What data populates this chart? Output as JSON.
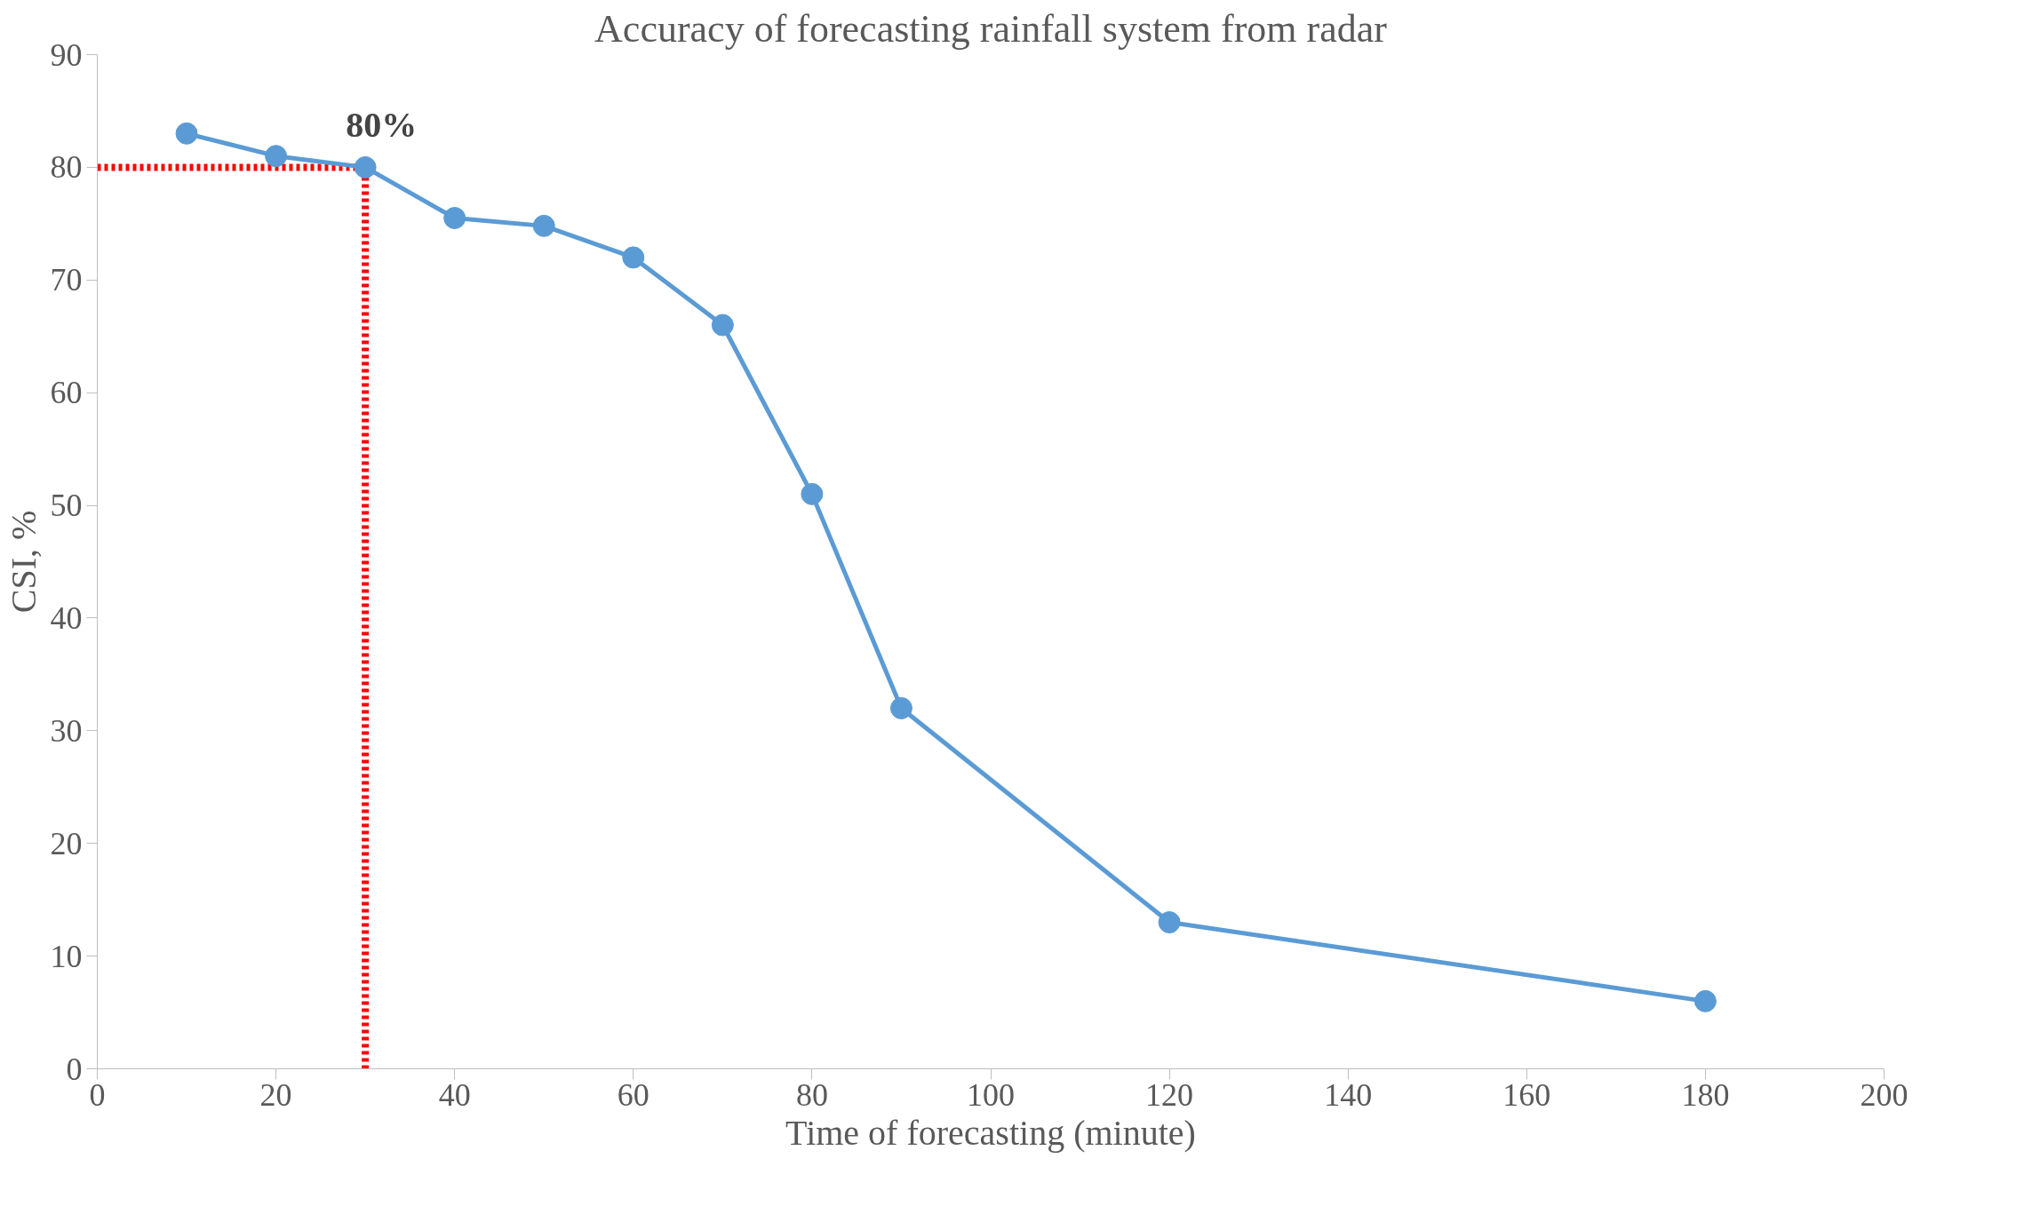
{
  "chart_data": {
    "type": "line",
    "title": "Accuracy of forecasting rainfall system from radar",
    "xlabel": "Time of forecasting (minute)",
    "ylabel": "CSI, %",
    "x": [
      10,
      20,
      30,
      40,
      50,
      60,
      70,
      80,
      90,
      120,
      180
    ],
    "series": [
      {
        "color": "#5b9bd5",
        "values": [
          83,
          81,
          80,
          75.5,
          74.8,
          72,
          66,
          51,
          32,
          13,
          6
        ]
      }
    ],
    "xlim": [
      0,
      200
    ],
    "xticks": [
      0,
      20,
      40,
      60,
      80,
      100,
      120,
      140,
      160,
      180,
      200
    ],
    "ylim": [
      0,
      90
    ],
    "yticks": [
      0,
      10,
      20,
      30,
      40,
      50,
      60,
      70,
      80,
      90
    ],
    "grid": false,
    "marker": "circle",
    "line_style": "solid",
    "ref_lines": [
      {
        "axis": "y",
        "value": 80,
        "color": "#ff0000",
        "line_style": "dotted"
      },
      {
        "axis": "x",
        "value": 30,
        "color": "#ff0000",
        "line_style": "dotted"
      }
    ],
    "annotations": [
      {
        "text": "80%",
        "x": 30,
        "y": 80
      }
    ]
  }
}
